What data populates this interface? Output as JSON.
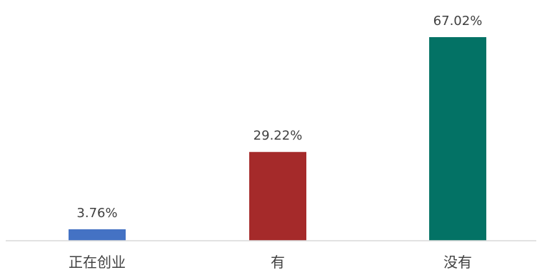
{
  "chart_data": {
    "type": "bar",
    "title": "",
    "xlabel": "",
    "ylabel": "",
    "categories": [
      "正在创业",
      "有",
      "没有"
    ],
    "values": [
      3.76,
      29.22,
      67.02
    ],
    "data_labels": [
      "3.76%",
      "29.22%",
      "67.02%"
    ],
    "colors": [
      "#4472c4",
      "#a52a2a",
      "#037265"
    ],
    "ylim": [
      0,
      67.02
    ],
    "grid": false,
    "legend": "none"
  },
  "colors": {
    "axis_line": "#d9d9d9",
    "text": "#404040"
  }
}
